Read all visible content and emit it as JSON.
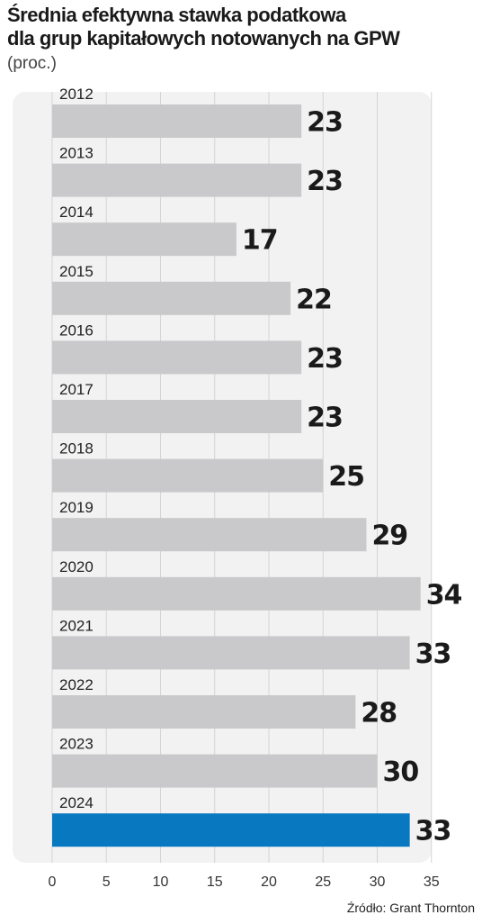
{
  "title_line1": "Średnia efektywna stawka podatkowa",
  "title_line2": "dla grup kapitałowych notowanych na GPW",
  "unit": "(proc.)",
  "source": "Źródło: Grant Thornton",
  "colors": {
    "bar": "#c9c9cb",
    "highlight": "#0878c0",
    "panel": "#f2f2f2",
    "grid": "#d4d4d4"
  },
  "chart_data": {
    "type": "bar",
    "orientation": "horizontal",
    "categories": [
      "2012",
      "2013",
      "2014",
      "2015",
      "2016",
      "2017",
      "2018",
      "2019",
      "2020",
      "2021",
      "2022",
      "2023",
      "2024"
    ],
    "values": [
      23,
      23,
      17,
      22,
      23,
      23,
      25,
      29,
      34,
      33,
      28,
      30,
      33
    ],
    "highlight_category": "2024",
    "xlim": [
      0,
      35
    ],
    "xticks": [
      0,
      5,
      10,
      15,
      20,
      25,
      30,
      35
    ],
    "grid": true
  }
}
